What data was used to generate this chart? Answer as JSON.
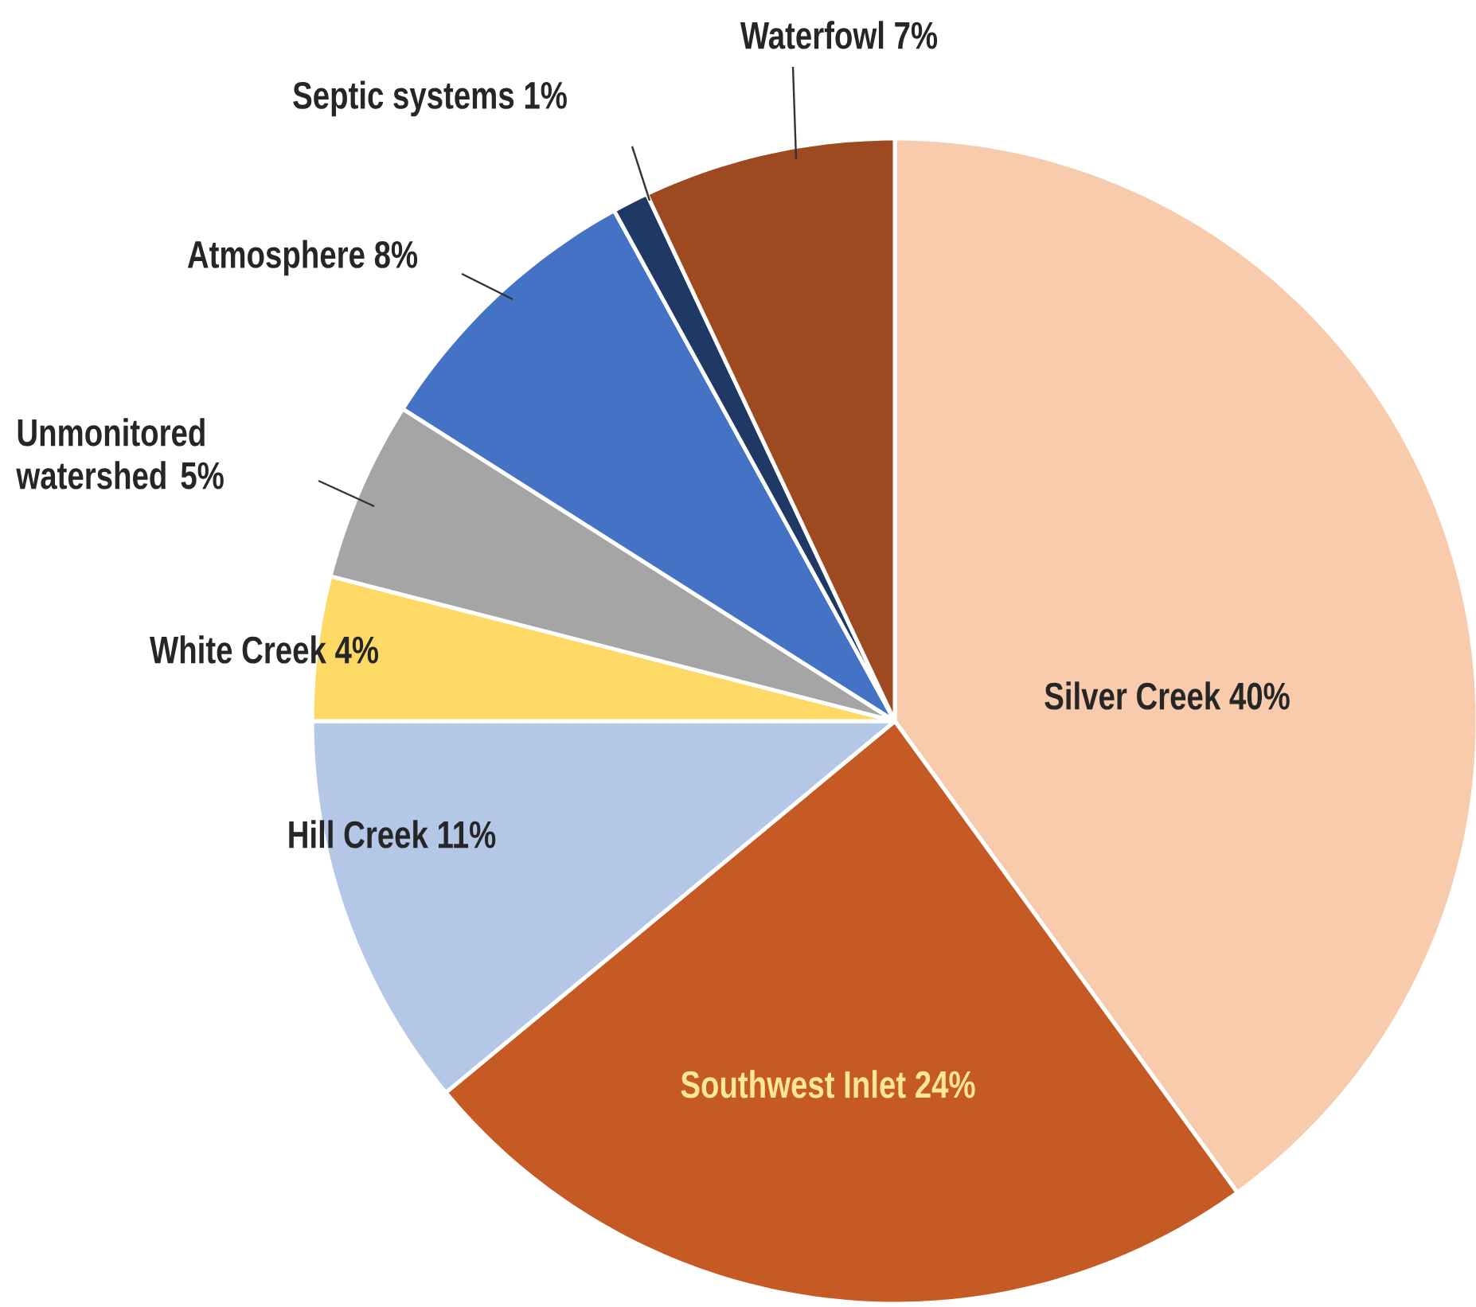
{
  "chart_data": {
    "type": "pie",
    "categories": [
      "Silver Creek",
      "Southwest Inlet",
      "Hill Creek",
      "White Creek",
      "Unmonitored watershed",
      "Atmosphere",
      "Septic systems",
      "Waterfowl"
    ],
    "values": [
      40,
      24,
      11,
      4,
      5,
      8,
      1,
      7
    ],
    "value_labels": [
      "40%",
      "24%",
      "11%",
      "4%",
      "5%",
      "8%",
      "1%",
      "7%"
    ],
    "colors": [
      "#f8cbad",
      "#c55a24",
      "#b4c7e7",
      "#ffd966",
      "#a5a5a5",
      "#4472c4",
      "#203864",
      "#9e4a20"
    ]
  }
}
